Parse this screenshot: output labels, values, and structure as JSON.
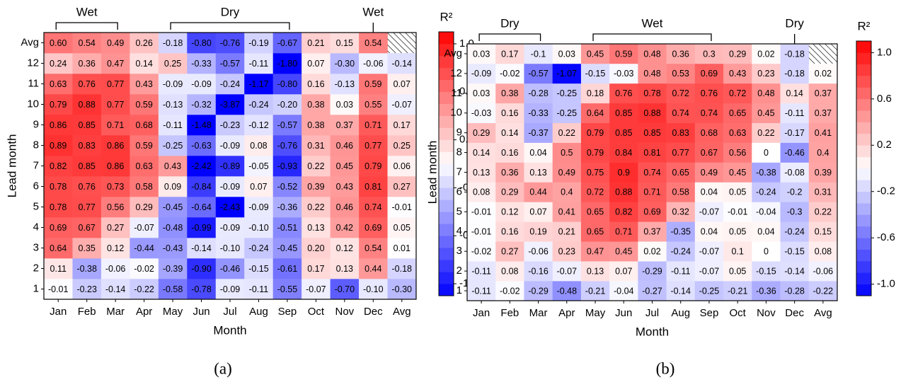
{
  "chart_data": [
    {
      "type": "heatmap",
      "x_label": "Month",
      "y_label": "Lead month",
      "caption": "(a)",
      "colorbar_label": "R²",
      "x_categories": [
        "Jan",
        "Feb",
        "Mar",
        "Apr",
        "May",
        "Jun",
        "Jul",
        "Aug",
        "Sep",
        "Oct",
        "Nov",
        "Dec",
        "Avg"
      ],
      "y_categories": [
        "1",
        "2",
        "3",
        "4",
        "5",
        "6",
        "7",
        "8",
        "9",
        "10",
        "11",
        "12",
        "Avg"
      ],
      "values": [
        [
          -0.01,
          -0.23,
          -0.14,
          -0.22,
          -0.58,
          -0.78,
          -0.09,
          -0.11,
          -0.55,
          -0.07,
          -0.7,
          -0.1,
          -0.3
        ],
        [
          0.11,
          -0.38,
          -0.06,
          -0.02,
          -0.39,
          -0.9,
          -0.46,
          -0.15,
          -0.61,
          0.17,
          0.13,
          0.44,
          -0.18
        ],
        [
          0.64,
          0.35,
          0.12,
          -0.44,
          -0.43,
          -0.14,
          -0.1,
          -0.24,
          -0.45,
          0.2,
          0.12,
          0.54,
          0.01
        ],
        [
          0.69,
          0.67,
          0.27,
          -0.07,
          -0.48,
          -0.99,
          -0.09,
          -0.1,
          -0.51,
          0.13,
          0.42,
          0.69,
          0.05
        ],
        [
          0.78,
          0.77,
          0.56,
          0.29,
          -0.45,
          -0.64,
          -2.43,
          -0.09,
          -0.36,
          0.22,
          0.46,
          0.74,
          -0.01
        ],
        [
          0.78,
          0.76,
          0.73,
          0.58,
          0.09,
          -0.84,
          -0.09,
          0.07,
          -0.52,
          0.39,
          0.43,
          0.81,
          0.27
        ],
        [
          0.82,
          0.85,
          0.86,
          0.63,
          0.43,
          -2.42,
          -0.89,
          -0.05,
          -0.93,
          0.22,
          0.45,
          0.79,
          0.06
        ],
        [
          0.89,
          0.83,
          0.86,
          0.59,
          -0.25,
          -0.63,
          -0.09,
          0.08,
          -0.76,
          0.31,
          0.46,
          0.77,
          0.25
        ],
        [
          0.86,
          0.85,
          0.71,
          0.68,
          -0.11,
          -1.48,
          -0.23,
          -0.12,
          -0.57,
          0.38,
          0.37,
          0.71,
          0.17
        ],
        [
          0.79,
          0.88,
          0.77,
          0.59,
          -0.13,
          -0.32,
          -3.87,
          -0.24,
          -0.2,
          0.38,
          0.03,
          0.55,
          -0.07
        ],
        [
          0.63,
          0.76,
          0.77,
          0.43,
          -0.09,
          -0.09,
          -0.24,
          -1.17,
          -0.8,
          0.16,
          -0.13,
          0.59,
          0.07
        ],
        [
          0.24,
          0.36,
          0.47,
          0.14,
          0.25,
          -0.33,
          -0.57,
          -0.11,
          -1.8,
          0.07,
          -0.3,
          -0.06,
          -0.14
        ],
        [
          0.6,
          0.54,
          0.49,
          0.26,
          -0.18,
          -0.8,
          -0.76,
          -0.19,
          -0.67,
          0.21,
          0.15,
          0.54,
          null
        ]
      ],
      "value_labels": [
        [
          "-0.01",
          "-0.23",
          "-0.14",
          "-0.22",
          "-0.58",
          "-0.78",
          "-0.09",
          "-0.11",
          "-0.55",
          "-0.07",
          "-0.70",
          "-0.10",
          "-0.30"
        ],
        [
          "0.11",
          "-0.38",
          "-0.06",
          "-0.02",
          "-0.39",
          "-0.90",
          "-0.46",
          "-0.15",
          "-0.61",
          "0.17",
          "0.13",
          "0.44",
          "-0.18"
        ],
        [
          "0.64",
          "0.35",
          "0.12",
          "-0.44",
          "-0.43",
          "-0.14",
          "-0.10",
          "-0.24",
          "-0.45",
          "0.20",
          "0.12",
          "0.54",
          "0.01"
        ],
        [
          "0.69",
          "0.67",
          "0.27",
          "-0.07",
          "-0.48",
          "-0.99",
          "-0.09",
          "-0.10",
          "-0.51",
          "0.13",
          "0.42",
          "0.69",
          "0.05"
        ],
        [
          "0.78",
          "0.77",
          "0.56",
          "0.29",
          "-0.45",
          "-0.64",
          "-2.43",
          "-0.09",
          "-0.36",
          "0.22",
          "0.46",
          "0.74",
          "-0.01"
        ],
        [
          "0.78",
          "0.76",
          "0.73",
          "0.58",
          "0.09",
          "-0.84",
          "-0.09",
          "0.07",
          "-0.52",
          "0.39",
          "0.43",
          "0.81",
          "0.27"
        ],
        [
          "0.82",
          "0.85",
          "0.86",
          "0.63",
          "0.43",
          "-2.42",
          "-0.89",
          "-0.05",
          "-0.93",
          "0.22",
          "0.45",
          "0.79",
          "0.06"
        ],
        [
          "0.89",
          "0.83",
          "0.86",
          "0.59",
          "-0.25",
          "-0.63",
          "-0.09",
          "0.08",
          "-0.76",
          "0.31",
          "0.46",
          "0.77",
          "0.25"
        ],
        [
          "0.86",
          "0.85",
          "0.71",
          "0.68",
          "-0.11",
          "-1.48",
          "-0.23",
          "-0.12",
          "-0.57",
          "0.38",
          "0.37",
          "0.71",
          "0.17"
        ],
        [
          "0.79",
          "0.88",
          "0.77",
          "0.59",
          "-0.13",
          "-0.32",
          "-3.87",
          "-0.24",
          "-0.20",
          "0.38",
          "0.03",
          "0.55",
          "-0.07"
        ],
        [
          "0.63",
          "0.76",
          "0.77",
          "0.43",
          "-0.09",
          "-0.09",
          "-0.24",
          "-1.17",
          "-0.80",
          "0.16",
          "-0.13",
          "0.59",
          "0.07"
        ],
        [
          "0.24",
          "0.36",
          "0.47",
          "0.14",
          "0.25",
          "-0.33",
          "-0.57",
          "-0.11",
          "-1.80",
          "0.07",
          "-0.30",
          "-0.06",
          "-0.14"
        ],
        [
          "0.60",
          "0.54",
          "0.49",
          "0.26",
          "-0.18",
          "-0.80",
          "-0.76",
          "-0.19",
          "-0.67",
          "0.21",
          "0.15",
          "0.54",
          null
        ]
      ],
      "clim": [
        -1.1,
        1.1
      ],
      "cticks": [
        {
          "value": -1,
          "label": "-1.0"
        },
        -0.6,
        -0.2,
        0.2,
        0.6,
        {
          "value": 1,
          "label": "1.0"
        }
      ],
      "brackets": [
        {
          "label": "Wet",
          "start": "Jan",
          "end": "Mar"
        },
        {
          "label": "Dry",
          "start": "May",
          "end": "Sep"
        },
        {
          "label": "Wet",
          "start": "Dec",
          "end": "Dec"
        }
      ]
    },
    {
      "type": "heatmap",
      "x_label": "Month",
      "y_label": "Lead month",
      "caption": "(b)",
      "colorbar_label": "R²",
      "x_categories": [
        "Jan",
        "Feb",
        "Mar",
        "Apr",
        "May",
        "Jun",
        "Jul",
        "Aug",
        "Sep",
        "Oct",
        "Nov",
        "Dec",
        "Avg"
      ],
      "y_categories": [
        "1",
        "2",
        "3",
        "4",
        "5",
        "6",
        "7",
        "8",
        "9",
        "10",
        "11",
        "12",
        "Avg"
      ],
      "values": [
        [
          -0.11,
          -0.02,
          -0.29,
          -0.48,
          -0.21,
          -0.04,
          -0.27,
          -0.14,
          -0.25,
          -0.21,
          -0.36,
          -0.28,
          -0.22
        ],
        [
          -0.11,
          0.08,
          -0.16,
          -0.07,
          0.13,
          0.07,
          -0.29,
          -0.11,
          -0.07,
          0.05,
          -0.15,
          -0.14,
          -0.06
        ],
        [
          -0.02,
          0.27,
          -0.06,
          0.23,
          0.47,
          0.45,
          0.02,
          -0.24,
          -0.07,
          0.1,
          0,
          -0.15,
          0.08
        ],
        [
          -0.01,
          0.16,
          0.19,
          0.21,
          0.65,
          0.71,
          0.37,
          -0.35,
          0.04,
          0.05,
          0.04,
          -0.24,
          0.15
        ],
        [
          -0.01,
          0.12,
          0.07,
          0.41,
          0.65,
          0.82,
          0.69,
          0.32,
          -0.07,
          -0.01,
          -0.04,
          -0.3,
          0.22
        ],
        [
          0.08,
          0.29,
          0.44,
          0.4,
          0.72,
          0.88,
          0.71,
          0.58,
          0.04,
          0.05,
          -0.24,
          -0.2,
          0.31
        ],
        [
          0.13,
          0.36,
          0.13,
          0.49,
          0.75,
          0.9,
          0.74,
          0.65,
          0.49,
          0.45,
          -0.38,
          -0.08,
          0.39
        ],
        [
          0.14,
          0.16,
          0.04,
          0.5,
          0.79,
          0.84,
          0.81,
          0.77,
          0.67,
          0.56,
          0,
          -0.46,
          0.4
        ],
        [
          0.29,
          0.14,
          -0.37,
          0.22,
          0.79,
          0.85,
          0.85,
          0.83,
          0.68,
          0.63,
          0.22,
          -0.17,
          0.41
        ],
        [
          -0.03,
          0.16,
          -0.33,
          -0.25,
          0.64,
          0.85,
          0.88,
          0.74,
          0.74,
          0.65,
          0.45,
          -0.11,
          0.37
        ],
        [
          0.03,
          0.38,
          -0.28,
          -0.25,
          0.18,
          0.76,
          0.78,
          0.72,
          0.76,
          0.72,
          0.48,
          0.14,
          0.37
        ],
        [
          -0.09,
          -0.02,
          -0.57,
          -1.07,
          -0.15,
          -0.03,
          0.48,
          0.53,
          0.69,
          0.43,
          0.23,
          -0.18,
          0.02
        ],
        [
          0.03,
          0.17,
          -0.1,
          0.03,
          0.45,
          0.59,
          0.48,
          0.36,
          0.3,
          0.29,
          0.02,
          -0.18,
          null
        ]
      ],
      "clim": [
        -1.1,
        1.1
      ],
      "cticks": [
        {
          "value": -1,
          "label": "-1.0"
        },
        -0.6,
        -0.2,
        0.2,
        0.6,
        {
          "value": 1,
          "label": "1.0"
        }
      ],
      "brackets": [
        {
          "label": "Dry",
          "start": "Jan",
          "end": "Mar"
        },
        {
          "label": "Wet",
          "start": "May",
          "end": "Sep"
        },
        {
          "label": "Dry",
          "start": "Dec",
          "end": "Dec"
        }
      ]
    }
  ]
}
